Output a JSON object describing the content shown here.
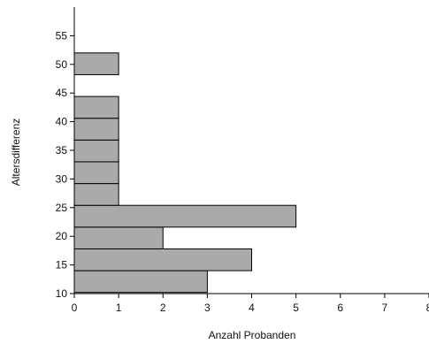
{
  "chart_data": {
    "type": "bar",
    "orientation": "horizontal",
    "title": "",
    "xlabel": "Anzahl Probanden",
    "ylabel": "Altersdifferenz",
    "xlim": [
      0,
      8
    ],
    "ylim": [
      10,
      60
    ],
    "x_ticks": [
      "0",
      "1",
      "2",
      "3",
      "4",
      "5",
      "6",
      "7",
      "8"
    ],
    "y_ticks": [
      "10",
      "15",
      "20",
      "25",
      "30",
      "35",
      "40",
      "45",
      "50",
      "55"
    ],
    "grid": false,
    "bar_color": "#aaaaaa",
    "bars": [
      {
        "from": 10.2,
        "to": 14.0,
        "value": 3
      },
      {
        "from": 14.0,
        "to": 17.8,
        "value": 4
      },
      {
        "from": 17.8,
        "to": 21.6,
        "value": 2
      },
      {
        "from": 21.6,
        "to": 25.4,
        "value": 5
      },
      {
        "from": 25.4,
        "to": 29.2,
        "value": 1
      },
      {
        "from": 29.2,
        "to": 33.0,
        "value": 1
      },
      {
        "from": 33.0,
        "to": 36.8,
        "value": 1
      },
      {
        "from": 36.8,
        "to": 40.6,
        "value": 1
      },
      {
        "from": 40.6,
        "to": 44.4,
        "value": 1
      },
      {
        "from": 48.2,
        "to": 52.0,
        "value": 1
      }
    ]
  }
}
